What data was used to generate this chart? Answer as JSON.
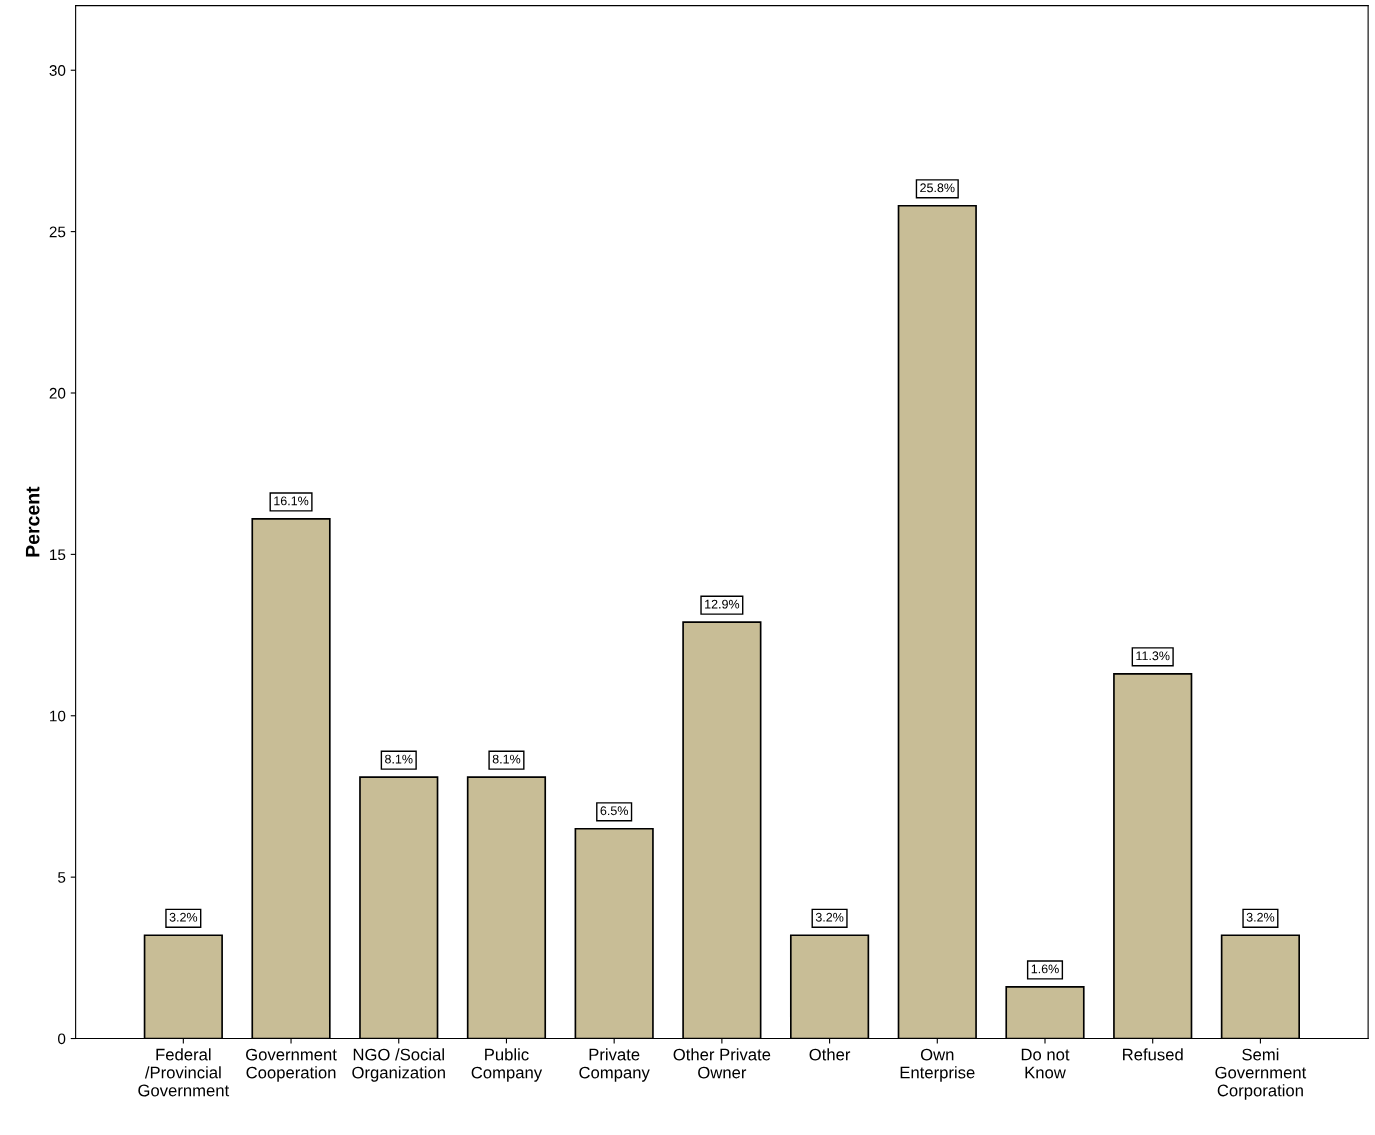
{
  "chart_data": {
    "type": "bar",
    "ylabel": "Percent",
    "categories": [
      "Federal\n/Provincial\nGovernment",
      "Government\nCooperation",
      "NGO /Social\nOrganization",
      "Public\nCompany",
      "Private\nCompany",
      "Other Private\nOwner",
      "Other",
      "Own\nEnterprise",
      "Do not\nKnow",
      "Refused",
      "Semi\nGovernment\nCorporation"
    ],
    "values": [
      3.2,
      16.1,
      8.1,
      8.1,
      6.5,
      12.9,
      3.2,
      25.8,
      1.6,
      11.3,
      3.2
    ],
    "value_labels": [
      "3.2%",
      "16.1%",
      "8.1%",
      "8.1%",
      "6.5%",
      "12.9%",
      "3.2%",
      "25.8%",
      "1.6%",
      "11.3%",
      "3.2%"
    ],
    "color": "#c8bd96",
    "ylim": [
      0,
      32
    ],
    "yticks": [
      0,
      5,
      10,
      15,
      20,
      25,
      30
    ],
    "grid": false
  }
}
